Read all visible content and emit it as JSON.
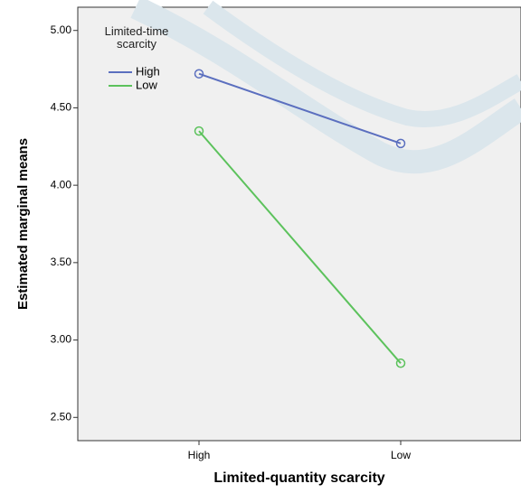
{
  "chart_data": {
    "type": "line",
    "x_label": "Limited-quantity scarcity",
    "y_label": "Estimated marginal means",
    "legend_title": "Limited-time scarcity",
    "categories": [
      "High",
      "Low"
    ],
    "series": [
      {
        "name": "High",
        "color": "#5b6fbf",
        "values": [
          4.72,
          4.27
        ]
      },
      {
        "name": "Low",
        "color": "#5cc25c",
        "values": [
          4.35,
          2.85
        ]
      }
    ],
    "ylim": [
      2.35,
      5.15
    ],
    "yticks": [
      {
        "value": 2.5,
        "label": "2.50"
      },
      {
        "value": 3,
        "label": "3.00"
      },
      {
        "value": 3.5,
        "label": "3.50"
      },
      {
        "value": 4,
        "label": "4.00"
      },
      {
        "value": 4.5,
        "label": "4.50"
      },
      {
        "value": 5,
        "label": "5.00"
      }
    ]
  }
}
